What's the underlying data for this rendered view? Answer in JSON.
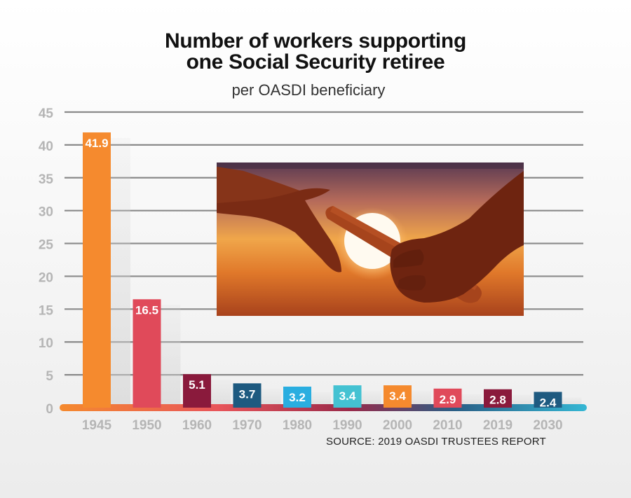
{
  "chart_data": {
    "type": "bar",
    "title_lines": [
      "Number of workers supporting",
      "one Social Security retiree"
    ],
    "subtitle": "per OASDI beneficiary",
    "source": "SOURCE: 2019 OASDI TRUSTEES REPORT",
    "xlabel": "",
    "ylabel": "",
    "ylim": [
      0,
      45
    ],
    "yticks": [
      0,
      5,
      10,
      15,
      20,
      25,
      30,
      35,
      40,
      45
    ],
    "grid": true,
    "categories": [
      "1945",
      "1950",
      "1960",
      "1970",
      "1980",
      "1990",
      "2000",
      "2010",
      "2019",
      "2030"
    ],
    "values": [
      41.9,
      16.5,
      5.1,
      3.7,
      3.2,
      3.4,
      3.4,
      2.9,
      2.8,
      2.4
    ],
    "value_labels": [
      "41.9",
      "16.5",
      "5.1",
      "3.7",
      "3.2",
      "3.4",
      "3.4",
      "2.9",
      "2.8",
      "2.4"
    ],
    "bar_colors": [
      "#f58a2e",
      "#e04a5a",
      "#8a1a3c",
      "#1e5a80",
      "#2aaee0",
      "#44c2d2",
      "#f58a2e",
      "#e04a5a",
      "#8a1a3c",
      "#1e5a80"
    ]
  },
  "image": {
    "semantic": "two-hands-passing-baton-sunset-photo"
  },
  "colors": {
    "grid": "#8a8a8a",
    "axis_text": "#b5b5b5",
    "baseline_orange": "#f58a2e",
    "baseline_cyan": "#35b7d4"
  }
}
